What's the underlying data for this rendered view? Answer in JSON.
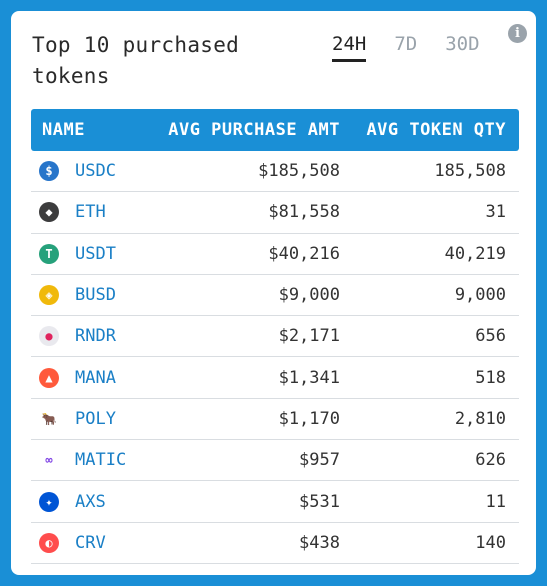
{
  "title": "Top 10 purchased\ntokens",
  "tabs": [
    "24H",
    "7D",
    "30D"
  ],
  "info_icon": "i",
  "columns": {
    "name": "NAME",
    "amt": "AVG PURCHASE AMT",
    "qty": "AVG TOKEN QTY"
  },
  "rows": [
    {
      "symbol": "USDC",
      "amt": "$185,508",
      "qty": "185,508",
      "icon": "usdc-icon",
      "color": "#2775ca",
      "glyph": "$"
    },
    {
      "symbol": "ETH",
      "amt": "$81,558",
      "qty": "31",
      "icon": "eth-icon",
      "color": "#3c3c3d",
      "glyph": "◆"
    },
    {
      "symbol": "USDT",
      "amt": "$40,216",
      "qty": "40,219",
      "icon": "usdt-icon",
      "color": "#26a17b",
      "glyph": "T"
    },
    {
      "symbol": "BUSD",
      "amt": "$9,000",
      "qty": "9,000",
      "icon": "busd-icon",
      "color": "#f0b90b",
      "glyph": "◈"
    },
    {
      "symbol": "RNDR",
      "amt": "$2,171",
      "qty": "656",
      "icon": "rndr-icon",
      "color": "#e9e9ee",
      "glyph": "●"
    },
    {
      "symbol": "MANA",
      "amt": "$1,341",
      "qty": "518",
      "icon": "mana-icon",
      "color": "#ff5a3c",
      "glyph": "▲"
    },
    {
      "symbol": "POLY",
      "amt": "$1,170",
      "qty": "2,810",
      "icon": "poly-icon",
      "color": "#ffffff",
      "glyph": "🐂"
    },
    {
      "symbol": "MATIC",
      "amt": "$957",
      "qty": "626",
      "icon": "matic-icon",
      "color": "#ffffff",
      "glyph": "∞"
    },
    {
      "symbol": "AXS",
      "amt": "$531",
      "qty": "11",
      "icon": "axs-icon",
      "color": "#0055d5",
      "glyph": "✦"
    },
    {
      "symbol": "CRV",
      "amt": "$438",
      "qty": "140",
      "icon": "crv-icon",
      "color": "#ff4d4d",
      "glyph": "◐"
    }
  ]
}
